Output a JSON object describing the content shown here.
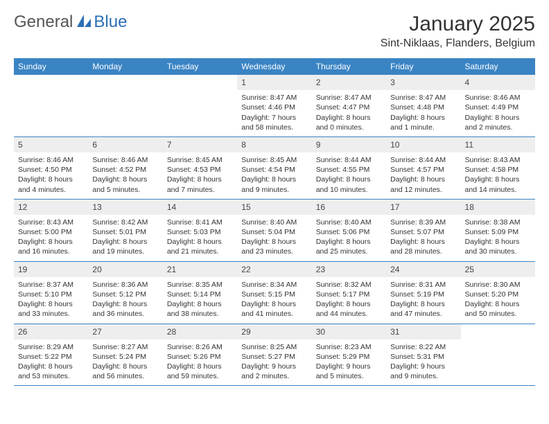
{
  "brand": {
    "part1": "General",
    "part2": "Blue"
  },
  "title": "January 2025",
  "location": "Sint-Niklaas, Flanders, Belgium",
  "colors": {
    "header_bg": "#3a84c4",
    "header_text": "#ffffff",
    "daynum_bg": "#eeeeee",
    "row_border": "#3a84c4",
    "brand_gray": "#555555",
    "brand_blue": "#2d6fb5",
    "text": "#333333",
    "background": "#ffffff"
  },
  "day_names": [
    "Sunday",
    "Monday",
    "Tuesday",
    "Wednesday",
    "Thursday",
    "Friday",
    "Saturday"
  ],
  "weeks": [
    [
      null,
      null,
      null,
      {
        "n": "1",
        "sunrise": "8:47 AM",
        "sunset": "4:46 PM",
        "daylight": "7 hours and 58 minutes."
      },
      {
        "n": "2",
        "sunrise": "8:47 AM",
        "sunset": "4:47 PM",
        "daylight": "8 hours and 0 minutes."
      },
      {
        "n": "3",
        "sunrise": "8:47 AM",
        "sunset": "4:48 PM",
        "daylight": "8 hours and 1 minute."
      },
      {
        "n": "4",
        "sunrise": "8:46 AM",
        "sunset": "4:49 PM",
        "daylight": "8 hours and 2 minutes."
      }
    ],
    [
      {
        "n": "5",
        "sunrise": "8:46 AM",
        "sunset": "4:50 PM",
        "daylight": "8 hours and 4 minutes."
      },
      {
        "n": "6",
        "sunrise": "8:46 AM",
        "sunset": "4:52 PM",
        "daylight": "8 hours and 5 minutes."
      },
      {
        "n": "7",
        "sunrise": "8:45 AM",
        "sunset": "4:53 PM",
        "daylight": "8 hours and 7 minutes."
      },
      {
        "n": "8",
        "sunrise": "8:45 AM",
        "sunset": "4:54 PM",
        "daylight": "8 hours and 9 minutes."
      },
      {
        "n": "9",
        "sunrise": "8:44 AM",
        "sunset": "4:55 PM",
        "daylight": "8 hours and 10 minutes."
      },
      {
        "n": "10",
        "sunrise": "8:44 AM",
        "sunset": "4:57 PM",
        "daylight": "8 hours and 12 minutes."
      },
      {
        "n": "11",
        "sunrise": "8:43 AM",
        "sunset": "4:58 PM",
        "daylight": "8 hours and 14 minutes."
      }
    ],
    [
      {
        "n": "12",
        "sunrise": "8:43 AM",
        "sunset": "5:00 PM",
        "daylight": "8 hours and 16 minutes."
      },
      {
        "n": "13",
        "sunrise": "8:42 AM",
        "sunset": "5:01 PM",
        "daylight": "8 hours and 19 minutes."
      },
      {
        "n": "14",
        "sunrise": "8:41 AM",
        "sunset": "5:03 PM",
        "daylight": "8 hours and 21 minutes."
      },
      {
        "n": "15",
        "sunrise": "8:40 AM",
        "sunset": "5:04 PM",
        "daylight": "8 hours and 23 minutes."
      },
      {
        "n": "16",
        "sunrise": "8:40 AM",
        "sunset": "5:06 PM",
        "daylight": "8 hours and 25 minutes."
      },
      {
        "n": "17",
        "sunrise": "8:39 AM",
        "sunset": "5:07 PM",
        "daylight": "8 hours and 28 minutes."
      },
      {
        "n": "18",
        "sunrise": "8:38 AM",
        "sunset": "5:09 PM",
        "daylight": "8 hours and 30 minutes."
      }
    ],
    [
      {
        "n": "19",
        "sunrise": "8:37 AM",
        "sunset": "5:10 PM",
        "daylight": "8 hours and 33 minutes."
      },
      {
        "n": "20",
        "sunrise": "8:36 AM",
        "sunset": "5:12 PM",
        "daylight": "8 hours and 36 minutes."
      },
      {
        "n": "21",
        "sunrise": "8:35 AM",
        "sunset": "5:14 PM",
        "daylight": "8 hours and 38 minutes."
      },
      {
        "n": "22",
        "sunrise": "8:34 AM",
        "sunset": "5:15 PM",
        "daylight": "8 hours and 41 minutes."
      },
      {
        "n": "23",
        "sunrise": "8:32 AM",
        "sunset": "5:17 PM",
        "daylight": "8 hours and 44 minutes."
      },
      {
        "n": "24",
        "sunrise": "8:31 AM",
        "sunset": "5:19 PM",
        "daylight": "8 hours and 47 minutes."
      },
      {
        "n": "25",
        "sunrise": "8:30 AM",
        "sunset": "5:20 PM",
        "daylight": "8 hours and 50 minutes."
      }
    ],
    [
      {
        "n": "26",
        "sunrise": "8:29 AM",
        "sunset": "5:22 PM",
        "daylight": "8 hours and 53 minutes."
      },
      {
        "n": "27",
        "sunrise": "8:27 AM",
        "sunset": "5:24 PM",
        "daylight": "8 hours and 56 minutes."
      },
      {
        "n": "28",
        "sunrise": "8:26 AM",
        "sunset": "5:26 PM",
        "daylight": "8 hours and 59 minutes."
      },
      {
        "n": "29",
        "sunrise": "8:25 AM",
        "sunset": "5:27 PM",
        "daylight": "9 hours and 2 minutes."
      },
      {
        "n": "30",
        "sunrise": "8:23 AM",
        "sunset": "5:29 PM",
        "daylight": "9 hours and 5 minutes."
      },
      {
        "n": "31",
        "sunrise": "8:22 AM",
        "sunset": "5:31 PM",
        "daylight": "9 hours and 9 minutes."
      },
      null
    ]
  ],
  "labels": {
    "sunrise": "Sunrise: ",
    "sunset": "Sunset: ",
    "daylight": "Daylight: "
  }
}
